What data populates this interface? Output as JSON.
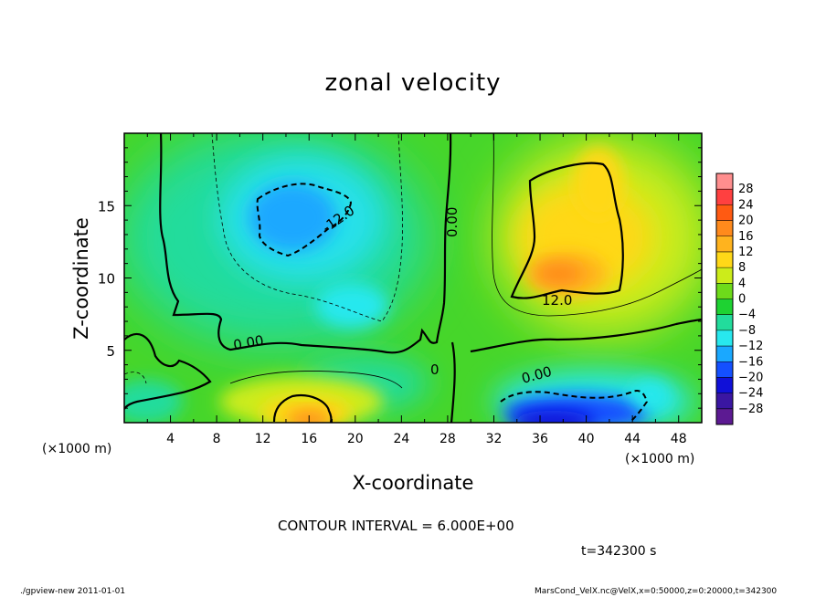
{
  "figure": {
    "title": "zonal velocity",
    "contour_interval": "CONTOUR INTERVAL = 6.000E+00",
    "time_label": "t=342300 s",
    "footer_left": "./gpview-new  2011-01-01",
    "footer_right": "MarsCond_VelX.nc@VelX,x=0:50000,z=0:20000,t=342300"
  },
  "chart_data": {
    "type": "heatmap",
    "title": "zonal velocity",
    "xlabel": "X-coordinate",
    "ylabel": "Z-coordinate",
    "x_unit": "(×1000 m)",
    "y_unit": "(×1000 m)",
    "xlim": [
      0,
      50
    ],
    "ylim": [
      0,
      20
    ],
    "xticks": [
      4,
      8,
      12,
      16,
      20,
      24,
      28,
      32,
      36,
      40,
      44,
      48
    ],
    "yticks": [
      5,
      10,
      15
    ],
    "colorbar": {
      "levels": [
        28,
        24,
        20,
        16,
        12,
        8,
        4,
        0,
        -4,
        -8,
        -12,
        -16,
        -20,
        -24,
        -28
      ],
      "colors": [
        "#ff8e8e",
        "#ff4040",
        "#ff5a12",
        "#ff8a1c",
        "#ffb31e",
        "#ffd818",
        "#ccec1a",
        "#6edb1a",
        "#1ed232",
        "#22dc9c",
        "#28e8ee",
        "#1aa8ff",
        "#1450ff",
        "#1010d8",
        "#3a16a2",
        "#5c1a92"
      ]
    },
    "contour_labels": [
      "-12.0",
      "0.00",
      "12.0",
      "0.00",
      "0",
      "0.00"
    ],
    "fields": {
      "background": 1,
      "features": [
        {
          "name": "upper-left negative",
          "x": 15,
          "z": 14.5,
          "value": -13
        },
        {
          "name": "mid-left negative",
          "x": 18,
          "z": 8,
          "value": -8
        },
        {
          "name": "upper-right positive",
          "x": 39,
          "z": 13.5,
          "value": 15
        },
        {
          "name": "lower-right negative",
          "x": 37,
          "z": 0.5,
          "value": -22
        },
        {
          "name": "bottom-left positive",
          "x": 16,
          "z": 1,
          "value": 12
        }
      ]
    }
  }
}
